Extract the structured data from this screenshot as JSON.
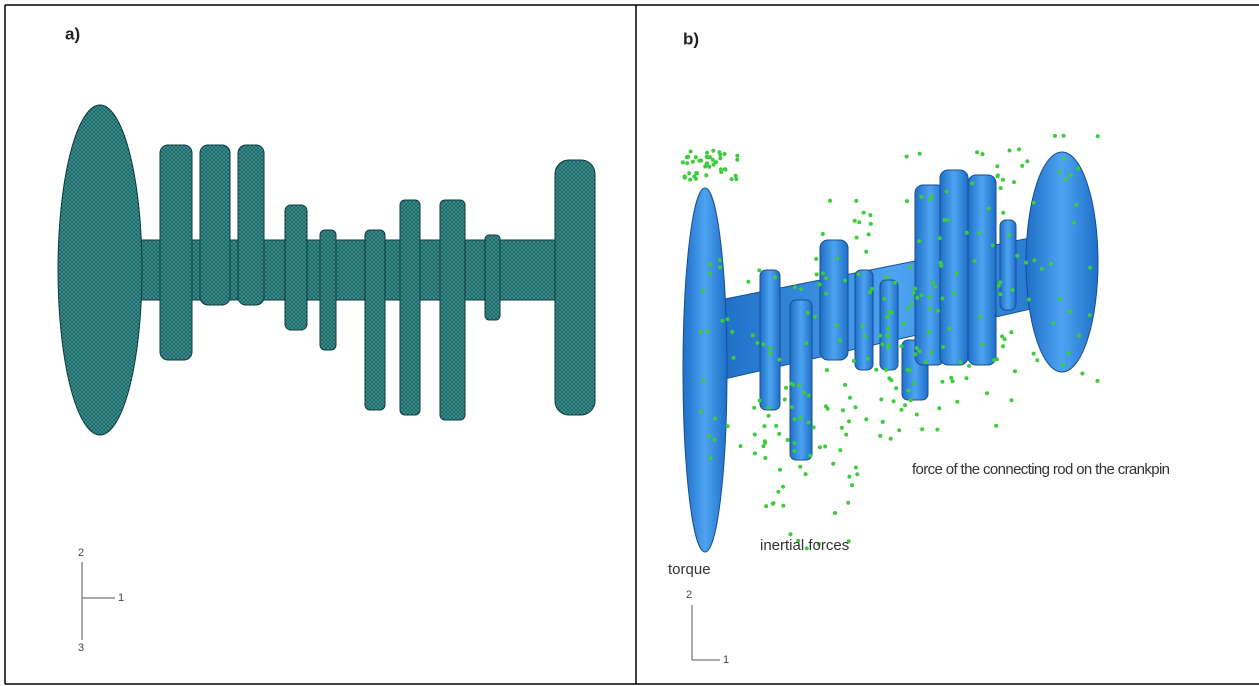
{
  "panels": [
    {
      "label": "a)",
      "axes": [
        "2",
        "1",
        "3"
      ]
    },
    {
      "label": "b)",
      "annotations": [
        "torque",
        "inertial forces",
        "force of the connecting rod on the crankpin"
      ],
      "axes": [
        "2",
        "1"
      ]
    }
  ]
}
